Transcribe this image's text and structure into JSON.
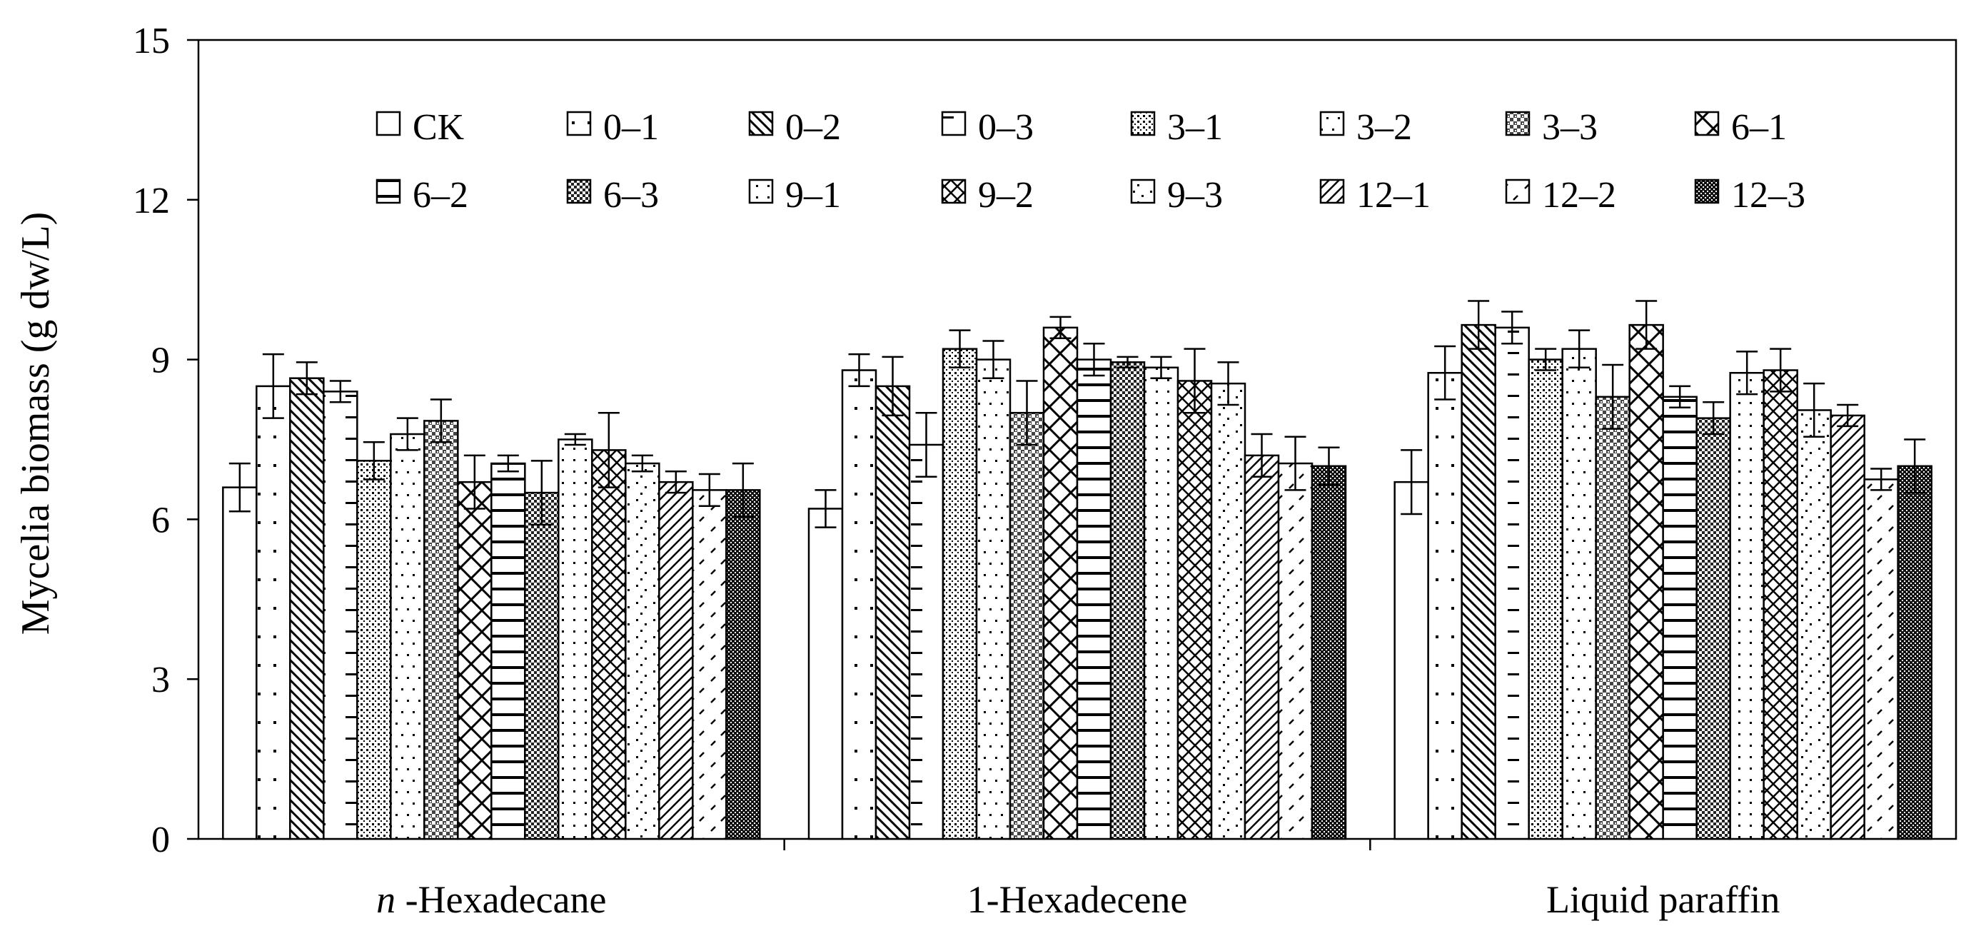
{
  "chart_data": {
    "type": "bar",
    "ylabel": "Mycelia biomass (g dw/L)",
    "ylim": [
      0,
      15
    ],
    "yticks": [
      "0",
      "3",
      "6",
      "9",
      "12",
      "15"
    ],
    "categories": [
      {
        "prefix": "n",
        "rest": " -Hexadecane"
      },
      {
        "prefix": "",
        "rest": "1-Hexadecene"
      },
      {
        "prefix": "",
        "rest": "Liquid paraffin"
      }
    ],
    "grid": false,
    "legend_position": "top, inside plot, two rows",
    "series": [
      {
        "name": "CK",
        "pattern": "blank",
        "values": [
          6.6,
          6.2,
          6.7
        ],
        "errors": [
          0.45,
          0.35,
          0.6
        ]
      },
      {
        "name": "0–1",
        "pattern": "sparse-dots",
        "values": [
          8.5,
          8.8,
          8.75
        ],
        "errors": [
          0.6,
          0.3,
          0.5
        ]
      },
      {
        "name": "0–2",
        "pattern": "diag-down",
        "values": [
          8.65,
          8.5,
          9.65
        ],
        "errors": [
          0.3,
          0.55,
          0.45
        ]
      },
      {
        "name": "0–3",
        "pattern": "dash-left",
        "values": [
          8.4,
          7.4,
          9.6
        ],
        "errors": [
          0.2,
          0.6,
          0.3
        ]
      },
      {
        "name": "3–1",
        "pattern": "dense-dots",
        "values": [
          7.1,
          9.2,
          9.0
        ],
        "errors": [
          0.35,
          0.35,
          0.2
        ]
      },
      {
        "name": "3–2",
        "pattern": "dots-diag",
        "values": [
          7.6,
          9.0,
          9.2
        ],
        "errors": [
          0.3,
          0.35,
          0.35
        ]
      },
      {
        "name": "3–3",
        "pattern": "cross-dense",
        "values": [
          7.85,
          8.0,
          8.3
        ],
        "errors": [
          0.4,
          0.6,
          0.6
        ]
      },
      {
        "name": "6–1",
        "pattern": "diag-cross",
        "values": [
          6.7,
          9.6,
          9.65
        ],
        "errors": [
          0.5,
          0.2,
          0.45
        ]
      },
      {
        "name": "6–2",
        "pattern": "horizontal",
        "values": [
          7.05,
          9.0,
          8.3
        ],
        "errors": [
          0.15,
          0.3,
          0.2
        ]
      },
      {
        "name": "6–3",
        "pattern": "checker",
        "values": [
          6.5,
          8.95,
          7.9
        ],
        "errors": [
          0.6,
          0.1,
          0.3
        ]
      },
      {
        "name": "9–1",
        "pattern": "light-dots",
        "values": [
          7.5,
          8.85,
          8.75
        ],
        "errors": [
          0.1,
          0.2,
          0.4
        ]
      },
      {
        "name": "9–2",
        "pattern": "zigzag",
        "values": [
          7.3,
          8.6,
          8.8
        ],
        "errors": [
          0.7,
          0.6,
          0.4
        ]
      },
      {
        "name": "9–3",
        "pattern": "scatter-dots",
        "values": [
          7.05,
          8.55,
          8.05
        ],
        "errors": [
          0.15,
          0.4,
          0.5
        ]
      },
      {
        "name": "12–1",
        "pattern": "diag-up",
        "values": [
          6.7,
          7.2,
          7.95
        ],
        "errors": [
          0.2,
          0.4,
          0.2
        ]
      },
      {
        "name": "12–2",
        "pattern": "sparse-diag",
        "values": [
          6.55,
          7.05,
          6.75
        ],
        "errors": [
          0.3,
          0.5,
          0.2
        ]
      },
      {
        "name": "12–3",
        "pattern": "dark-checker",
        "values": [
          6.55,
          7.0,
          7.0
        ],
        "errors": [
          0.5,
          0.35,
          0.5
        ]
      }
    ]
  }
}
